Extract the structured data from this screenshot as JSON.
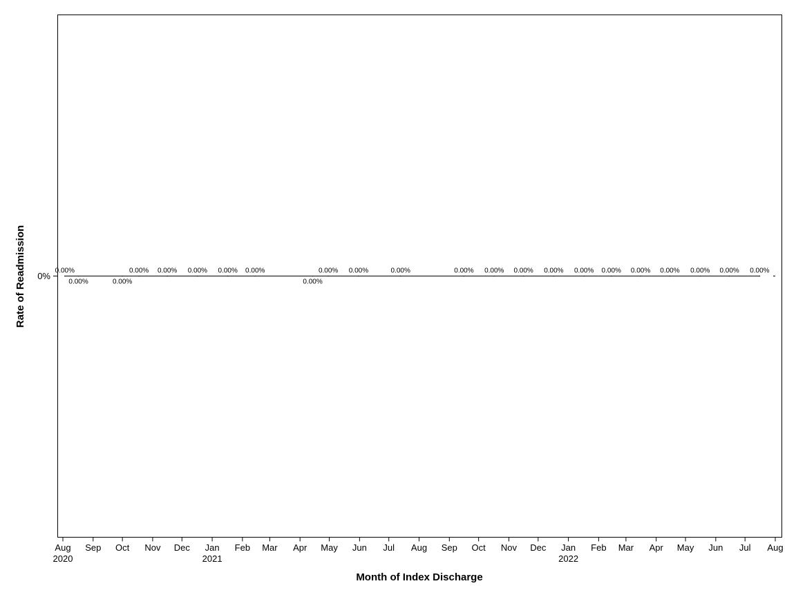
{
  "chart_data": {
    "type": "line",
    "title": "",
    "xlabel": "Month of Index Discharge",
    "ylabel": "Rate of Readmission",
    "y_ticks": [
      "0%"
    ],
    "x_tick_labels": [
      "Aug",
      "Sep",
      "Oct",
      "Nov",
      "Dec",
      "Jan",
      "Feb",
      "Mar",
      "Apr",
      "May",
      "Jun",
      "Jul",
      "Aug",
      "Sep",
      "Oct",
      "Nov",
      "Dec",
      "Jan",
      "Feb",
      "Mar",
      "Apr",
      "May",
      "Jun",
      "Jul",
      "Aug"
    ],
    "x_year_labels": [
      {
        "tick_index": 0,
        "label": "2020"
      },
      {
        "tick_index": 5,
        "label": "2021"
      },
      {
        "tick_index": 17,
        "label": "2022"
      }
    ],
    "x_range": [
      "2020-08-01",
      "2022-08-01"
    ],
    "grid": false,
    "legend": "none",
    "series": [
      {
        "points": [
          {
            "x": "2020-08-03",
            "y": 0,
            "label": "0.00%"
          },
          {
            "x": "2020-08-17",
            "y": 0,
            "label": "0.00%"
          },
          {
            "x": "2020-10-01",
            "y": 0,
            "label": "0.00%"
          },
          {
            "x": "2020-10-18",
            "y": 0,
            "label": "0.00%"
          },
          {
            "x": "2020-11-16",
            "y": 0,
            "label": "0.00%"
          },
          {
            "x": "2020-12-17",
            "y": 0,
            "label": "0.00%"
          },
          {
            "x": "2021-01-17",
            "y": 0,
            "label": "0.00%"
          },
          {
            "x": "2021-02-14",
            "y": 0,
            "label": "0.00%"
          },
          {
            "x": "2021-04-14",
            "y": 0,
            "label": "0.00%"
          },
          {
            "x": "2021-04-30",
            "y": 0,
            "label": "0.00%"
          },
          {
            "x": "2021-05-31",
            "y": 0,
            "label": "0.00%"
          },
          {
            "x": "2021-07-13",
            "y": 0,
            "label": "0.00%"
          },
          {
            "x": "2021-09-16",
            "y": 0,
            "label": "0.00%"
          },
          {
            "x": "2021-10-17",
            "y": 0,
            "label": "0.00%"
          },
          {
            "x": "2021-11-16",
            "y": 0,
            "label": "0.00%"
          },
          {
            "x": "2021-12-17",
            "y": 0,
            "label": "0.00%"
          },
          {
            "x": "2022-01-17",
            "y": 0,
            "label": "0.00%"
          },
          {
            "x": "2022-02-14",
            "y": 0,
            "label": "0.00%"
          },
          {
            "x": "2022-03-16",
            "y": 0,
            "label": "0.00%"
          },
          {
            "x": "2022-04-15",
            "y": 0,
            "label": "0.00%"
          },
          {
            "x": "2022-05-16",
            "y": 0,
            "label": "0.00%"
          },
          {
            "x": "2022-06-15",
            "y": 0,
            "label": "0.00%"
          },
          {
            "x": "2022-07-16",
            "y": 0,
            "label": "0.00%"
          }
        ]
      }
    ],
    "line_color": "#000000"
  }
}
